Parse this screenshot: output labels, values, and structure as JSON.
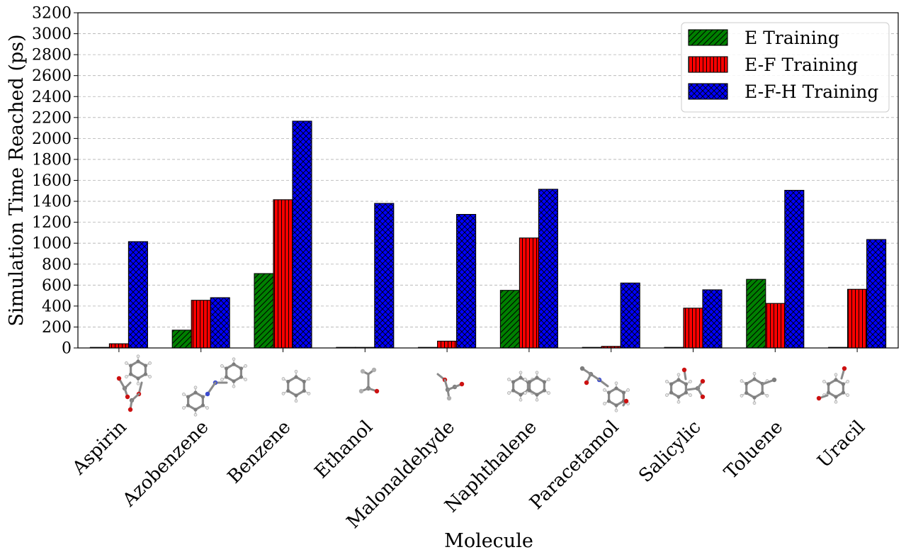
{
  "chart_data": {
    "type": "bar",
    "title": "",
    "xlabel": "Molecule",
    "ylabel": "Simulation Time Reached (ps)",
    "ylim": [
      0,
      3200
    ],
    "yticks": [
      0,
      200,
      400,
      600,
      800,
      1000,
      1200,
      1400,
      1600,
      1800,
      2000,
      2200,
      2400,
      2600,
      2800,
      3000,
      3200
    ],
    "grid": "horizontal dashed",
    "legend_position": "top-right",
    "categories": [
      "Aspirin",
      "Azobenzene",
      "Benzene",
      "Ethanol",
      "Malonaldehyde",
      "Naphthalene",
      "Paracetamol",
      "Salicylic",
      "Toluene",
      "Uracil"
    ],
    "series": [
      {
        "name": "E Training",
        "color": "#008000",
        "hatch": "diagonal",
        "values": [
          0,
          170,
          710,
          5,
          0,
          550,
          0,
          0,
          655,
          0
        ]
      },
      {
        "name": "E-F Training",
        "color": "#ff0000",
        "hatch": "vertical",
        "values": [
          40,
          455,
          1415,
          0,
          65,
          1050,
          15,
          380,
          425,
          560
        ]
      },
      {
        "name": "E-F-H Training",
        "color": "#0000ff",
        "hatch": "crosshatch",
        "values": [
          1015,
          480,
          2165,
          1380,
          1275,
          1515,
          620,
          555,
          1505,
          1035
        ]
      }
    ]
  }
}
